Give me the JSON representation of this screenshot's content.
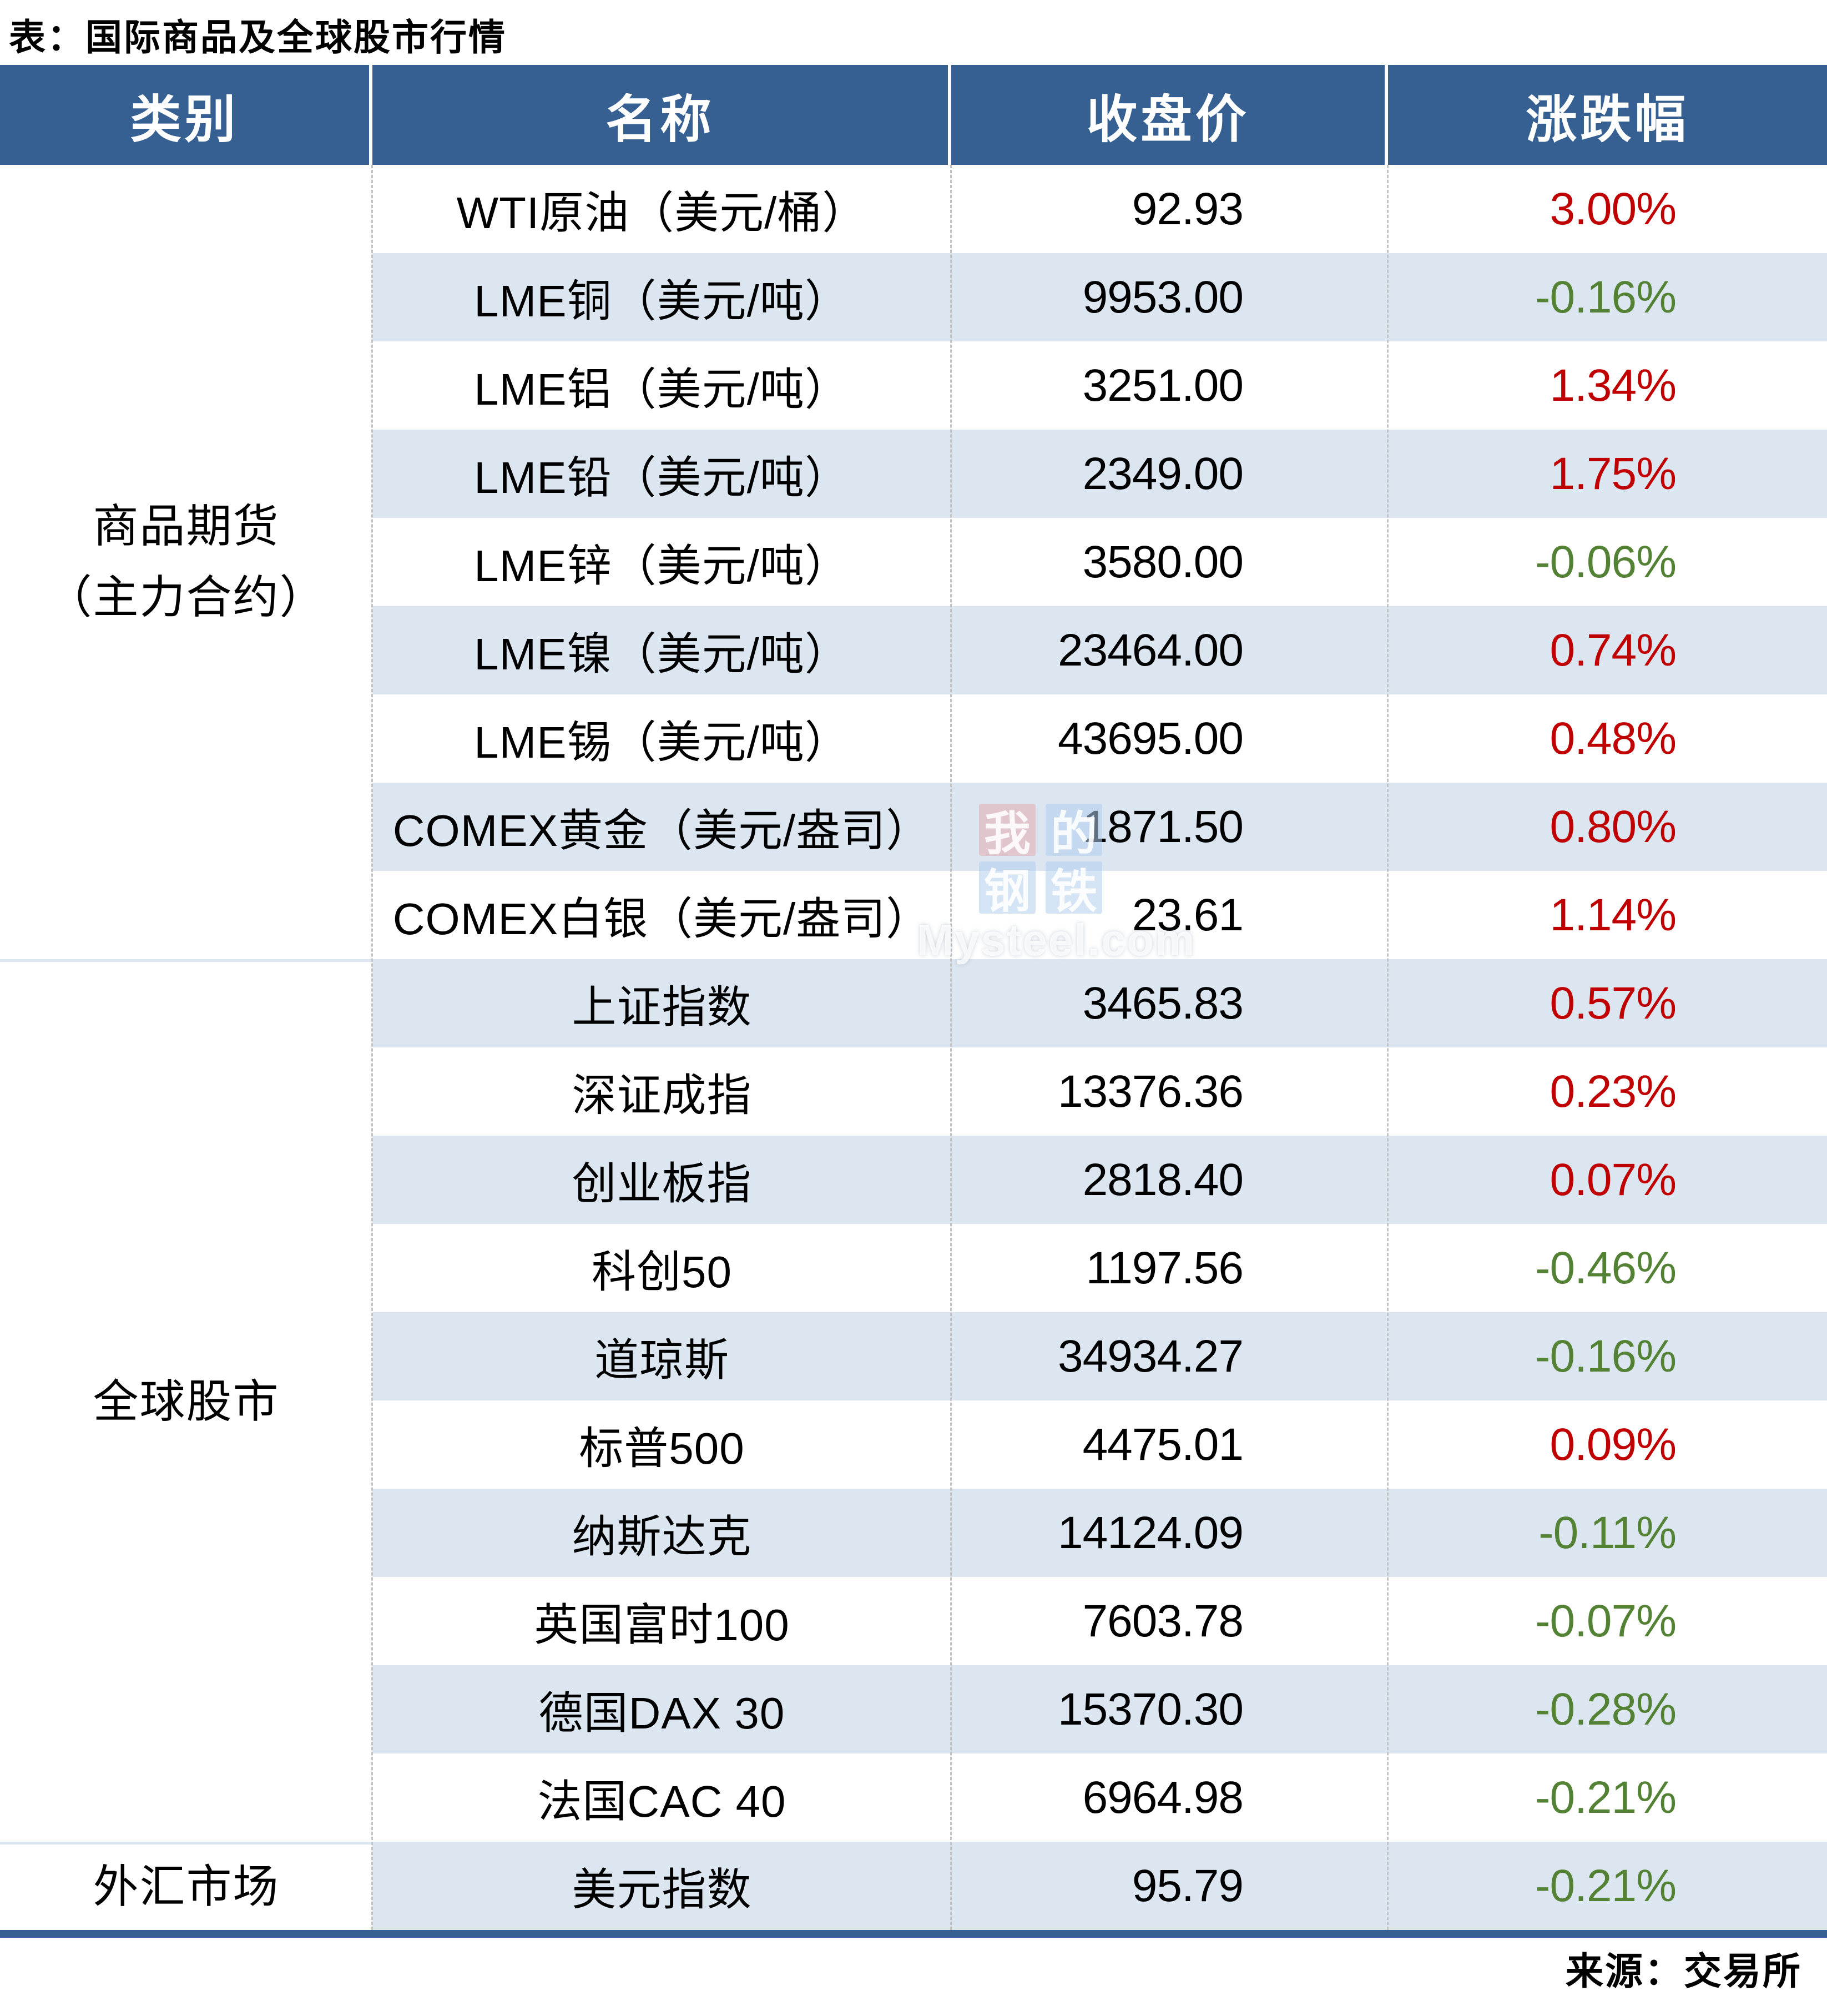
{
  "chart_data": {
    "type": "table",
    "title": "表：国际商品及全球股市行情",
    "columns": [
      "类别",
      "名称",
      "收盘价",
      "涨跌幅"
    ],
    "source": "来源：交易所",
    "colors": {
      "header_bg": "#366092",
      "stripe_row_bg": "#dce6f1",
      "up_text": "#c00000",
      "down_text": "#548235"
    },
    "groups": [
      {
        "category": "商品期货（主力合约）",
        "category_lines": [
          "商品期货",
          "（主力合约）"
        ],
        "rows": [
          {
            "name": "WTI原油（美元/桶）",
            "close": "92.93",
            "change": "3.00%",
            "direction": "up"
          },
          {
            "name": "LME铜（美元/吨）",
            "close": "9953.00",
            "change": "-0.16%",
            "direction": "down"
          },
          {
            "name": "LME铝（美元/吨）",
            "close": "3251.00",
            "change": "1.34%",
            "direction": "up"
          },
          {
            "name": "LME铅（美元/吨）",
            "close": "2349.00",
            "change": "1.75%",
            "direction": "up"
          },
          {
            "name": "LME锌（美元/吨）",
            "close": "3580.00",
            "change": "-0.06%",
            "direction": "down"
          },
          {
            "name": "LME镍（美元/吨）",
            "close": "23464.00",
            "change": "0.74%",
            "direction": "up"
          },
          {
            "name": "LME锡（美元/吨）",
            "close": "43695.00",
            "change": "0.48%",
            "direction": "up"
          },
          {
            "name": "COMEX黄金（美元/盎司）",
            "close": "1871.50",
            "change": "0.80%",
            "direction": "up"
          },
          {
            "name": "COMEX白银（美元/盎司）",
            "close": "23.61",
            "change": "1.14%",
            "direction": "up"
          }
        ]
      },
      {
        "category": "全球股市",
        "category_lines": [
          "全球股市"
        ],
        "rows": [
          {
            "name": "上证指数",
            "close": "3465.83",
            "change": "0.57%",
            "direction": "up"
          },
          {
            "name": "深证成指",
            "close": "13376.36",
            "change": "0.23%",
            "direction": "up"
          },
          {
            "name": "创业板指",
            "close": "2818.40",
            "change": "0.07%",
            "direction": "up"
          },
          {
            "name": "科创50",
            "close": "1197.56",
            "change": "-0.46%",
            "direction": "down"
          },
          {
            "name": "道琼斯",
            "close": "34934.27",
            "change": "-0.16%",
            "direction": "down"
          },
          {
            "name": "标普500",
            "close": "4475.01",
            "change": "0.09%",
            "direction": "up"
          },
          {
            "name": "纳斯达克",
            "close": "14124.09",
            "change": "-0.11%",
            "direction": "down"
          },
          {
            "name": "英国富时100",
            "close": "7603.78",
            "change": "-0.07%",
            "direction": "down"
          },
          {
            "name": "德国DAX 30",
            "close": "15370.30",
            "change": "-0.28%",
            "direction": "down"
          },
          {
            "name": "法国CAC 40",
            "close": "6964.98",
            "change": "-0.21%",
            "direction": "down"
          }
        ]
      },
      {
        "category": "外汇市场",
        "category_lines": [
          "外汇市场"
        ],
        "rows": [
          {
            "name": "美元指数",
            "close": "95.79",
            "change": "-0.21%",
            "direction": "down"
          }
        ]
      }
    ]
  },
  "watermark": {
    "chars": [
      "我",
      "的",
      "钢",
      "铁"
    ],
    "text": "Mysteel.com"
  }
}
